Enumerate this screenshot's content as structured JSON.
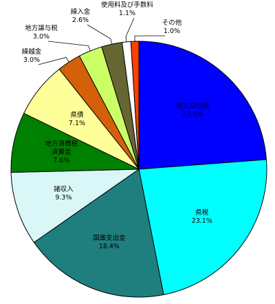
{
  "chart_data": {
    "type": "pie",
    "categories": [
      "地方交付税",
      "県税",
      "国庫支出金",
      "諸収入",
      "地方消費税\n清算金",
      "県債",
      "繰越金",
      "地方譲与税",
      "繰入金",
      "使用料及び手数料",
      "その他"
    ],
    "values": [
      23.8,
      23.1,
      18.4,
      9.3,
      7.6,
      7.1,
      3.0,
      3.0,
      2.6,
      1.1,
      1.0
    ],
    "value_labels": [
      "23.8%",
      "23.1%",
      "18.4%",
      "9.3%",
      "7.6%",
      "7.1%",
      "3.0%",
      "3.0%",
      "2.6%",
      "1.1%",
      "1.0%"
    ],
    "colors": [
      "#0000ff",
      "#00ffff",
      "#1f7f7f",
      "#d9f7f7",
      "#008000",
      "#ffff99",
      "#d4600a",
      "#ccff66",
      "#666633",
      "#ffffff",
      "#ff4000"
    ]
  }
}
